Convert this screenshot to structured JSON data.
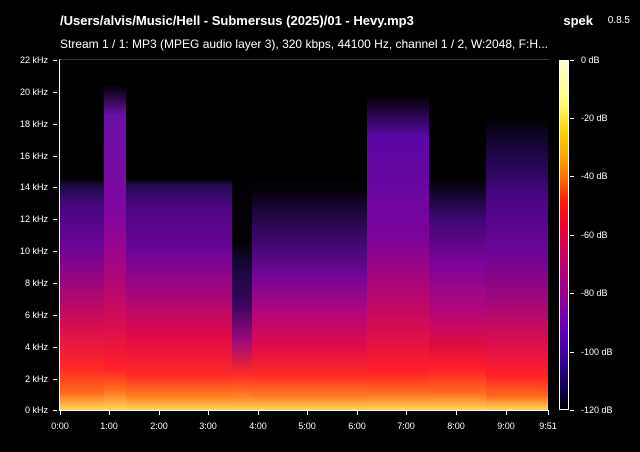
{
  "header": {
    "title": "/Users/alvis/Music/Hell - Submersus (2025)/01 - Hevy.mp3",
    "app_name": "spek",
    "app_version": "0.8.5",
    "stream_info": "Stream 1 / 1: MP3 (MPEG audio layer 3), 320 kbps, 44100 Hz, channel 1 / 2, W:2048, F:H..."
  },
  "frequency_axis": {
    "labels": [
      "22 kHz",
      "20 kHz",
      "18 kHz",
      "16 kHz",
      "14 kHz",
      "12 kHz",
      "10 kHz",
      "8 kHz",
      "6 kHz",
      "4 kHz",
      "2 kHz",
      "0 kHz"
    ]
  },
  "time_axis": {
    "labels": [
      "0:00",
      "1:00",
      "2:00",
      "3:00",
      "4:00",
      "5:00",
      "6:00",
      "7:00",
      "8:00",
      "9:00",
      "9:51"
    ]
  },
  "colorbar": {
    "labels": [
      "0 dB",
      "-20 dB",
      "-40 dB",
      "-60 dB",
      "-80 dB",
      "-100 dB",
      "-120 dB"
    ]
  },
  "colors": {
    "background": "#000000",
    "text": "#ffffff",
    "hot": "#ffd75c",
    "mid": "#ff2a24",
    "cool": "#7e049a",
    "cold": "#1f0b54"
  }
}
